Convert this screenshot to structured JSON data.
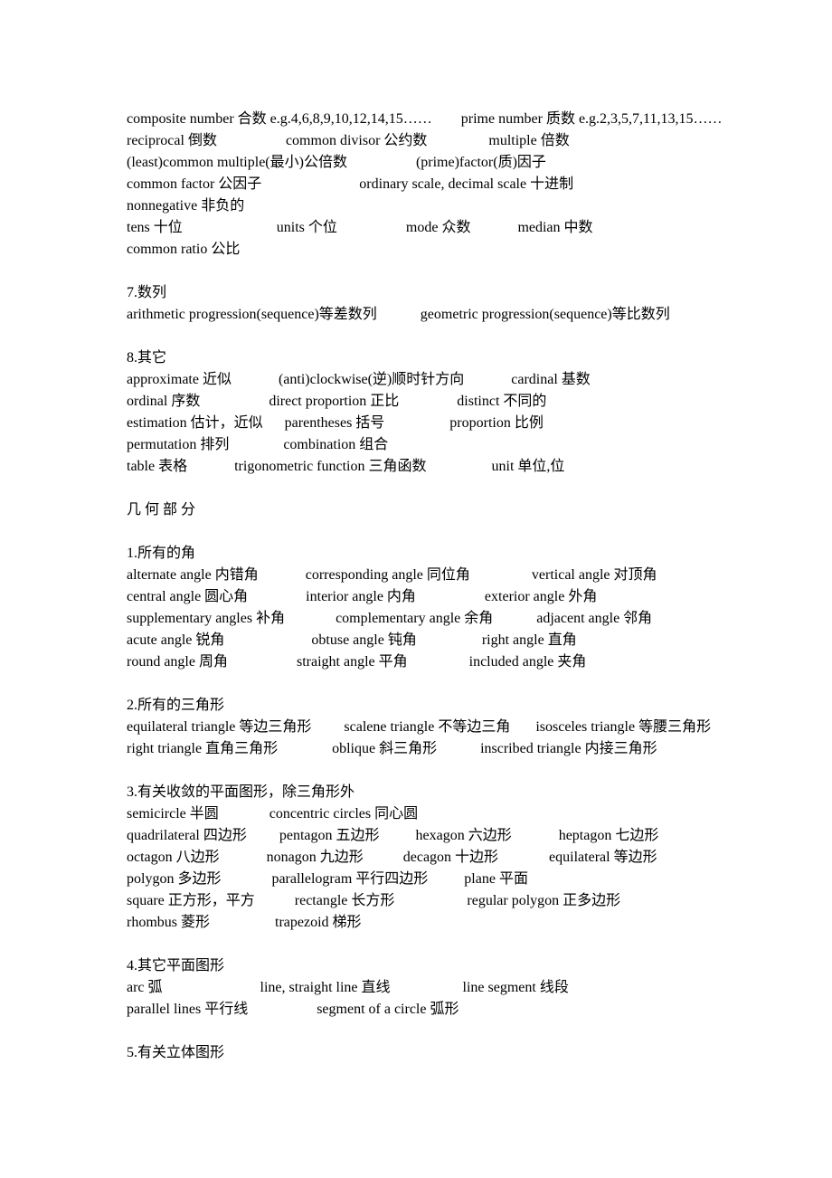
{
  "sections": [
    {
      "rows": [
        "composite number 合数 e.g.4,6,8,9,10,12,14,15……        prime number 质数 e.g.2,3,5,7,11,13,15……",
        "reciprocal 倒数                   common divisor 公约数                 multiple 倍数",
        "(least)common multiple(最小)公倍数                   (prime)factor(质)因子",
        "common factor 公因子                           ordinary scale, decimal scale 十进制",
        "nonnegative 非负的",
        "tens 十位                          units 个位                   mode 众数             median 中数",
        "common ratio 公比"
      ]
    },
    {
      "heading": "7.数列",
      "rows": [
        "arithmetic progression(sequence)等差数列            geometric progression(sequence)等比数列"
      ]
    },
    {
      "heading": "8.其它",
      "rows": [
        "approximate 近似             (anti)clockwise(逆)顺时针方向             cardinal 基数",
        "ordinal 序数                   direct proportion 正比                distinct 不同的",
        "estimation 估计，近似      parentheses 括号                  proportion 比例",
        "permutation 排列               combination 组合",
        "table 表格             trigonometric function 三角函数                  unit 单位,位"
      ]
    },
    {
      "heading_spaced": "几 何 部 分",
      "rows": []
    },
    {
      "heading": "1.所有的角",
      "rows": [
        "alternate angle 内错角             corresponding angle 同位角                 vertical angle 对顶角",
        "central angle 圆心角                interior angle 内角                   exterior angle 外角",
        "supplementary angles 补角              complementary angle 余角            adjacent angle 邻角",
        "acute angle 锐角                        obtuse angle 钝角                  right angle 直角",
        "round angle 周角                   straight angle 平角                 included angle 夹角"
      ]
    },
    {
      "heading": "2.所有的三角形",
      "rows": [
        "equilateral triangle 等边三角形         scalene triangle 不等边三角       isosceles triangle 等腰三角形",
        "right triangle 直角三角形               oblique 斜三角形            inscribed triangle 内接三角形"
      ]
    },
    {
      "heading": "3.有关收敛的平面图形，除三角形外",
      "rows": [
        "semicircle 半圆              concentric circles 同心圆",
        "quadrilateral 四边形         pentagon 五边形          hexagon 六边形             heptagon 七边形",
        "octagon 八边形             nonagon 九边形           decagon 十边形              equilateral 等边形",
        "polygon 多边形              parallelogram 平行四边形          plane 平面",
        "square 正方形，平方           rectangle 长方形                    regular polygon 正多边形",
        "rhombus 菱形                  trapezoid 梯形"
      ]
    },
    {
      "heading": "4.其它平面图形",
      "rows": [
        "arc 弧                           line, straight line 直线                    line segment 线段",
        "parallel lines 平行线                   segment of a circle 弧形"
      ]
    },
    {
      "heading": "5.有关立体图形",
      "rows": []
    }
  ]
}
